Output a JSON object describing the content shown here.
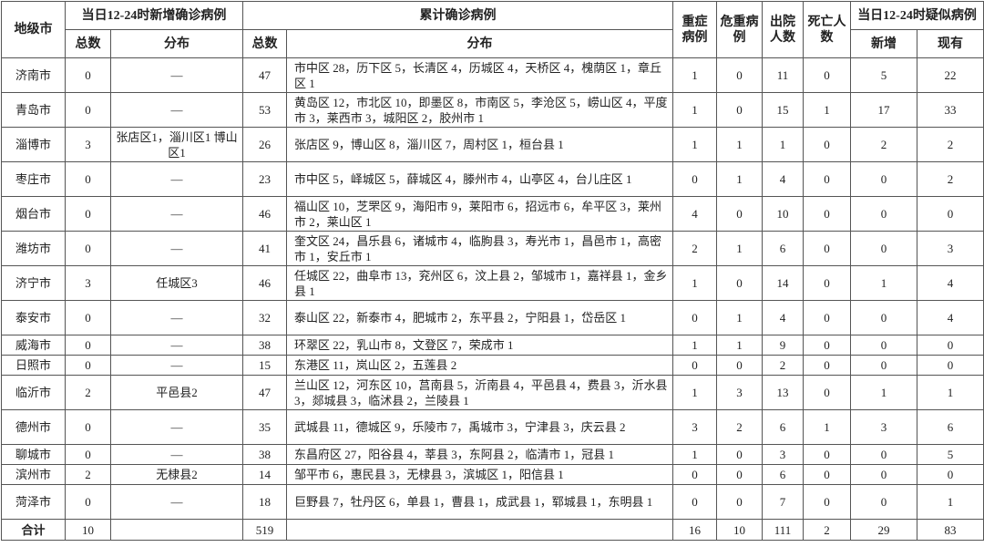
{
  "table": {
    "header": {
      "city": "地级市",
      "new_group": "当日12-24时新增确诊病例",
      "cum_group": "累计确诊病例",
      "severe": "重症病例",
      "critical": "危重病例",
      "discharged": "出院人数",
      "deaths": "死亡人数",
      "suspect_group": "当日12-24时疑似病例",
      "new_total": "总数",
      "new_dist": "分布",
      "cum_total": "总数",
      "cum_dist": "分布",
      "suspect_new": "新增",
      "suspect_current": "现有"
    },
    "rows": [
      [
        "济南市",
        "0",
        "—",
        "47",
        "市中区 28，历下区 5，长清区 4，历城区 4，天桥区 4，槐荫区 1，章丘区 1",
        "1",
        "0",
        "11",
        "0",
        "5",
        "22"
      ],
      [
        "青岛市",
        "0",
        "—",
        "53",
        "黄岛区 12，市北区 10，即墨区 8，市南区 5，李沧区 5，崂山区 4，平度市 3，莱西市 3，城阳区 2，胶州市 1",
        "1",
        "0",
        "15",
        "1",
        "17",
        "33"
      ],
      [
        "淄博市",
        "3",
        "张店区1，淄川区1 博山区1",
        "26",
        "张店区 9，博山区 8，淄川区 7，周村区 1，桓台县 1",
        "1",
        "1",
        "1",
        "0",
        "2",
        "2"
      ],
      [
        "枣庄市",
        "0",
        "—",
        "23",
        "市中区 5，峄城区 5，薛城区 4，滕州市 4，山亭区 4，台儿庄区 1",
        "0",
        "1",
        "4",
        "0",
        "0",
        "2"
      ],
      [
        "烟台市",
        "0",
        "—",
        "46",
        "福山区 10，芝罘区 9，海阳市 9，莱阳市 6，招远市 6，牟平区 3，莱州市 2，莱山区 1",
        "4",
        "0",
        "10",
        "0",
        "0",
        "0"
      ],
      [
        "潍坊市",
        "0",
        "—",
        "41",
        "奎文区 24，昌乐县 6，诸城市 4，临朐县 3，寿光市 1，昌邑市 1，高密市 1，安丘市 1",
        "2",
        "1",
        "6",
        "0",
        "0",
        "3"
      ],
      [
        "济宁市",
        "3",
        "任城区3",
        "46",
        "任城区 22，曲阜市 13，兖州区 6，汶上县 2，邹城市 1，嘉祥县 1，金乡县 1",
        "1",
        "0",
        "14",
        "0",
        "1",
        "4"
      ],
      [
        "泰安市",
        "0",
        "—",
        "32",
        "泰山区 22，新泰市 4，肥城市 2，东平县 2，宁阳县 1，岱岳区 1",
        "0",
        "1",
        "4",
        "0",
        "0",
        "4"
      ],
      [
        "威海市",
        "0",
        "—",
        "38",
        "环翠区 22，乳山市 8，文登区 7，荣成市 1",
        "1",
        "1",
        "9",
        "0",
        "0",
        "0"
      ],
      [
        "日照市",
        "0",
        "—",
        "15",
        "东港区 11，岚山区 2，五莲县 2",
        "0",
        "0",
        "2",
        "0",
        "0",
        "0"
      ],
      [
        "临沂市",
        "2",
        "平邑县2",
        "47",
        "兰山区 12，河东区 10，莒南县 5，沂南县 4，平邑县 4，费县 3，沂水县 3，郯城县 3，临沭县 2，兰陵县 1",
        "1",
        "3",
        "13",
        "0",
        "1",
        "1"
      ],
      [
        "德州市",
        "0",
        "—",
        "35",
        "武城县 11，德城区 9，乐陵市 7，禹城市 3，宁津县 3，庆云县 2",
        "3",
        "2",
        "6",
        "1",
        "3",
        "6"
      ],
      [
        "聊城市",
        "0",
        "—",
        "38",
        "东昌府区 27，阳谷县 4，莘县 3，东阿县 2，临清市 1，冠县 1",
        "1",
        "0",
        "3",
        "0",
        "0",
        "5"
      ],
      [
        "滨州市",
        "2",
        "无棣县2",
        "14",
        "邹平市 6，惠民县 3，无棣县 3，滨城区 1，阳信县 1",
        "0",
        "0",
        "6",
        "0",
        "0",
        "0"
      ],
      [
        "菏泽市",
        "0",
        "—",
        "18",
        "巨野县 7，牡丹区 6，单县 1，曹县 1，成武县 1，郓城县 1，东明县 1",
        "0",
        "0",
        "7",
        "0",
        "0",
        "1"
      ]
    ],
    "total": {
      "label": "合计",
      "new_total": "10",
      "cum_total": "519",
      "severe": "16",
      "critical": "10",
      "discharged": "111",
      "deaths": "2",
      "suspect_new": "29",
      "suspect_current": "83"
    }
  }
}
